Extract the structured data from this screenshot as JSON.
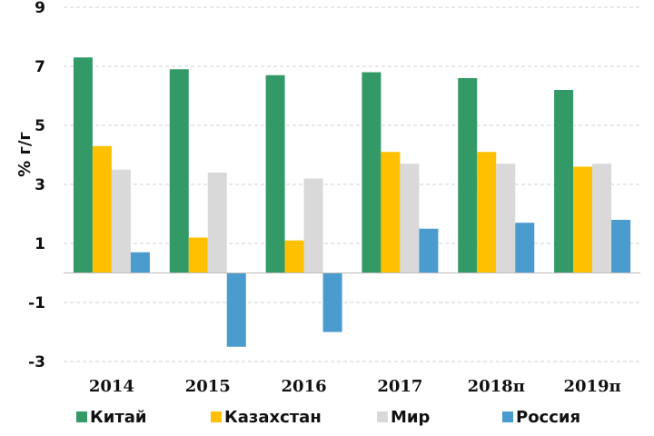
{
  "chart_data": {
    "type": "bar",
    "categories": [
      "2014",
      "2015",
      "2016",
      "2017",
      "2018п",
      "2019п"
    ],
    "series": [
      {
        "name": "Китай",
        "color": "#339966",
        "values": [
          7.3,
          6.9,
          6.7,
          6.8,
          6.6,
          6.2
        ]
      },
      {
        "name": "Казахстан",
        "color": "#FFC000",
        "values": [
          4.3,
          1.2,
          1.1,
          4.1,
          4.1,
          3.6
        ]
      },
      {
        "name": "Мир",
        "color": "#D9D9D9",
        "values": [
          3.5,
          3.4,
          3.2,
          3.7,
          3.7,
          3.7
        ]
      },
      {
        "name": "Россия",
        "color": "#4A9BCE",
        "values": [
          0.7,
          -2.5,
          -2.0,
          1.5,
          1.7,
          1.8
        ]
      }
    ],
    "title": "",
    "xlabel": "",
    "ylabel": "% г/г",
    "ylim": [
      -3,
      9
    ],
    "yticks": [
      "9",
      "7",
      "5",
      "3",
      "1",
      "-1",
      "-3"
    ],
    "ytick_values": [
      9,
      7,
      5,
      3,
      1,
      -1,
      -3
    ],
    "grid": true,
    "legend_position": "bottom"
  }
}
